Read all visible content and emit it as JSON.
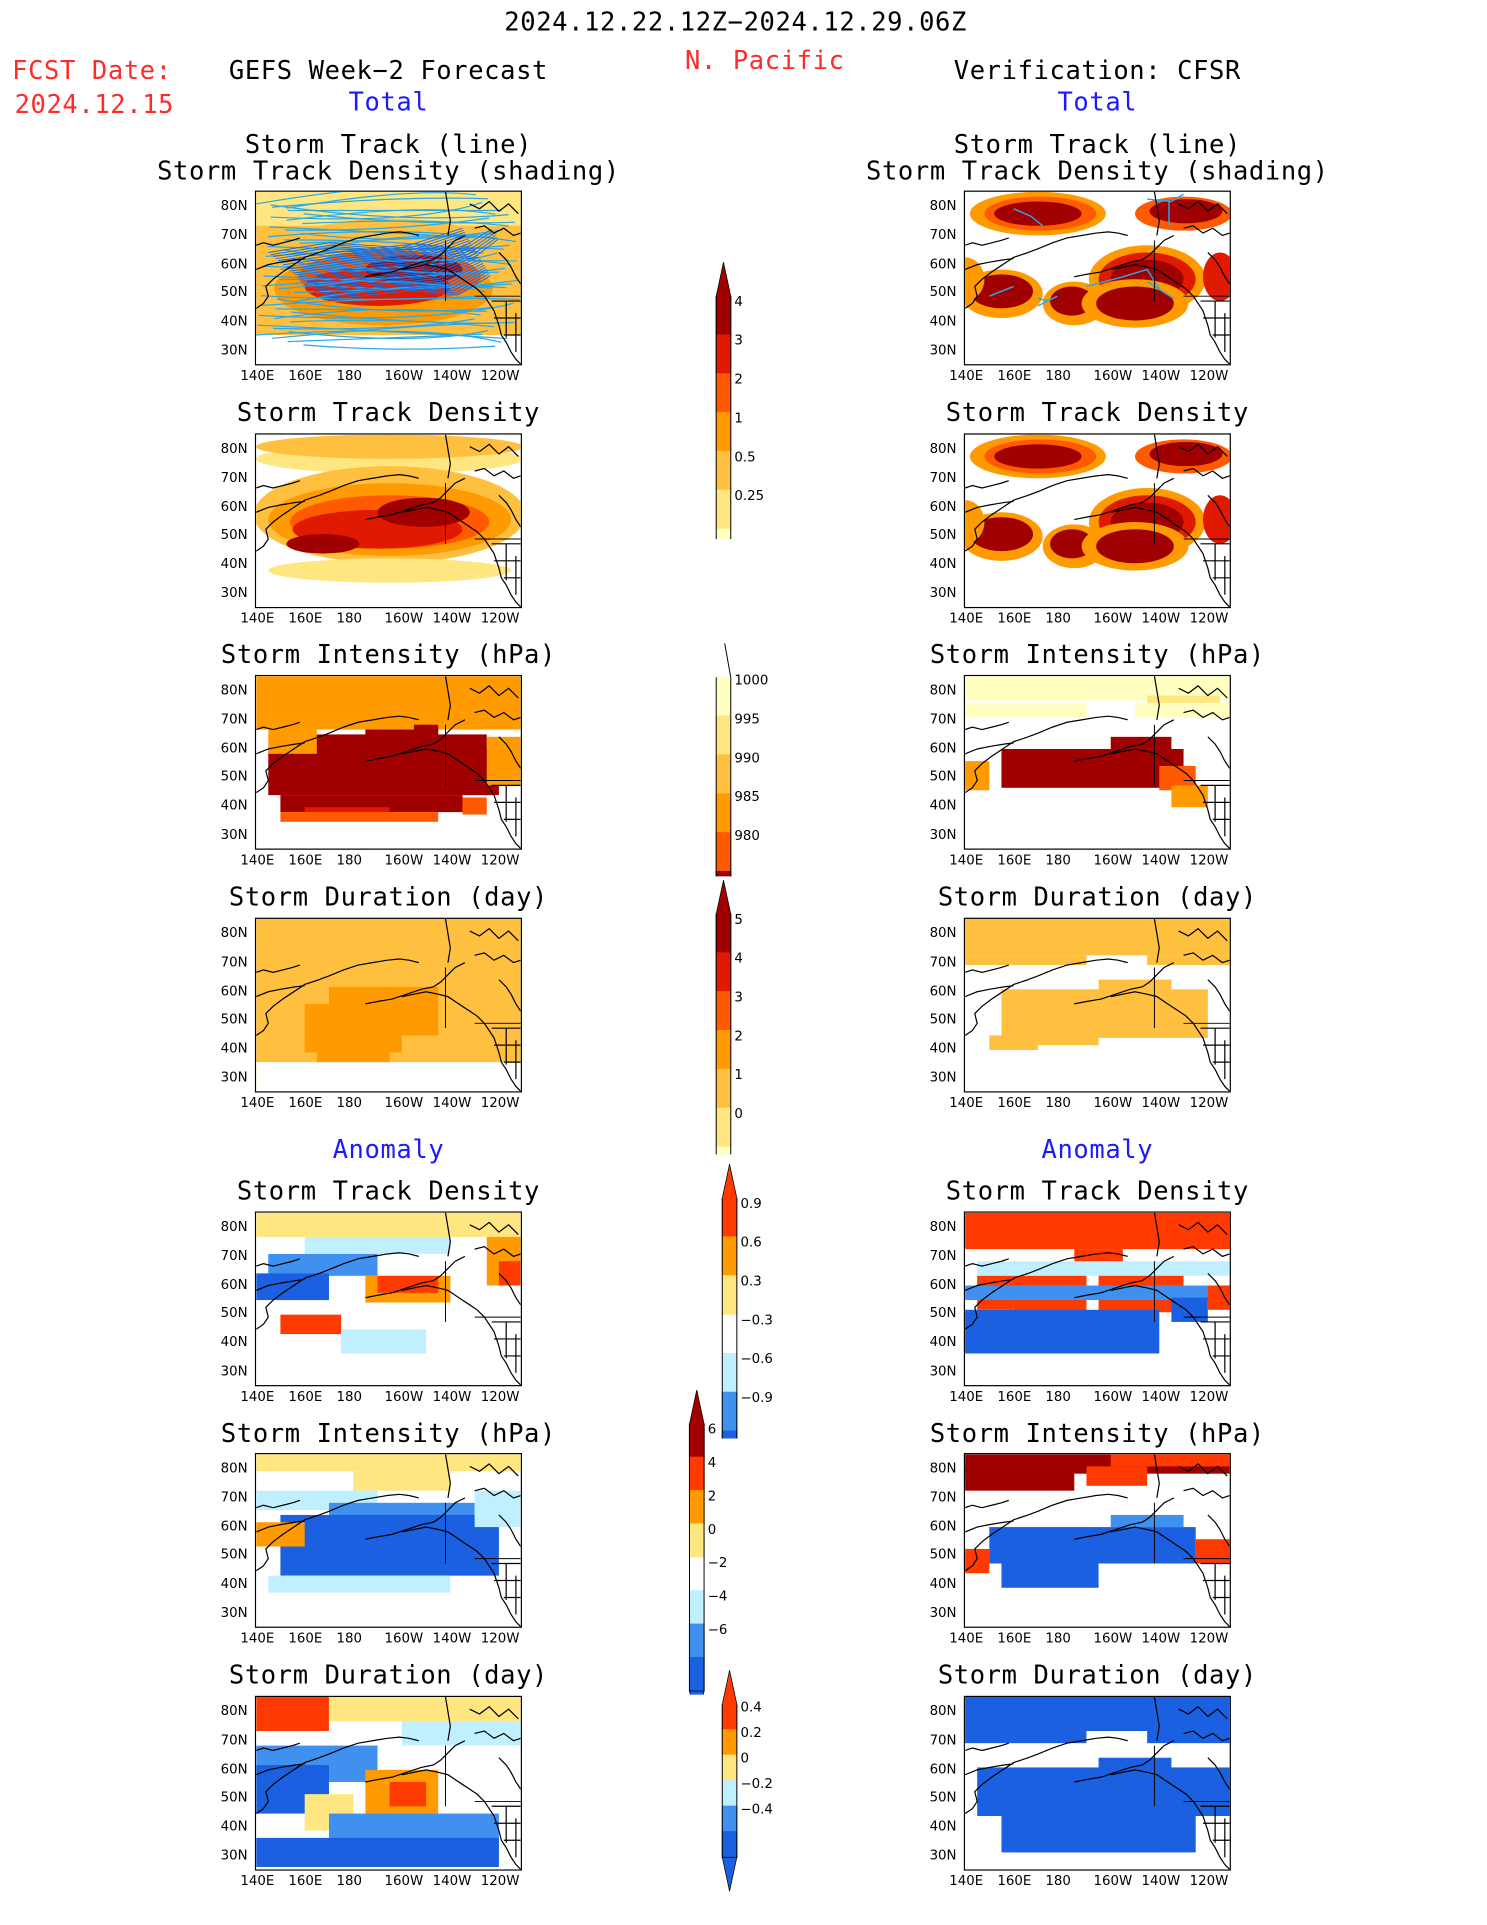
{
  "header": {
    "period": "2024.12.22.12Z−2024.12.29.06Z",
    "region": "N. Pacific",
    "fcst_label": "FCST Date:",
    "fcst_date": "2024.12.15",
    "left_title": "GEFS Week−2 Forecast",
    "right_title": "Verification: CFSR",
    "left_sub": "Total",
    "right_sub": "Total",
    "left_anom": "Anomaly",
    "right_anom": "Anomaly"
  },
  "panels": {
    "track": "Storm Track (line)",
    "track2": "Storm Track Density (shading)",
    "density": "Storm Track Density",
    "intensity": "Storm Intensity (hPa)",
    "duration": "Storm Duration (day)"
  },
  "axes": {
    "lat": [
      "80N",
      "70N",
      "60N",
      "50N",
      "40N",
      "30N"
    ],
    "lon": [
      "140E",
      "160E",
      "180",
      "160W",
      "140W",
      "120W"
    ]
  },
  "colorbars": {
    "density_total": [
      "4",
      "3",
      "2",
      "1",
      "0.5",
      "0.25"
    ],
    "intensity_total": [
      "1000",
      "995",
      "990",
      "985",
      "980"
    ],
    "duration_total": [
      "5",
      "4",
      "3",
      "2",
      "1",
      "0"
    ],
    "density_anom": [
      "0.9",
      "0.6",
      "0.3",
      "−0.3",
      "−0.6",
      "−0.9"
    ],
    "intensity_anom": [
      "6",
      "4",
      "2",
      "0",
      "−2",
      "−4",
      "−6"
    ],
    "duration_anom": [
      "0.4",
      "0.2",
      "0",
      "−0.2",
      "−0.4"
    ]
  },
  "colors": {
    "warm": [
      "#ffffc0",
      "#ffe680",
      "#ffc040",
      "#ff9a00",
      "#ff5a00",
      "#e01a00",
      "#a00000"
    ],
    "cool": [
      "#c0f0ff",
      "#80c8ff",
      "#4090f0",
      "#1a60e0"
    ]
  }
}
